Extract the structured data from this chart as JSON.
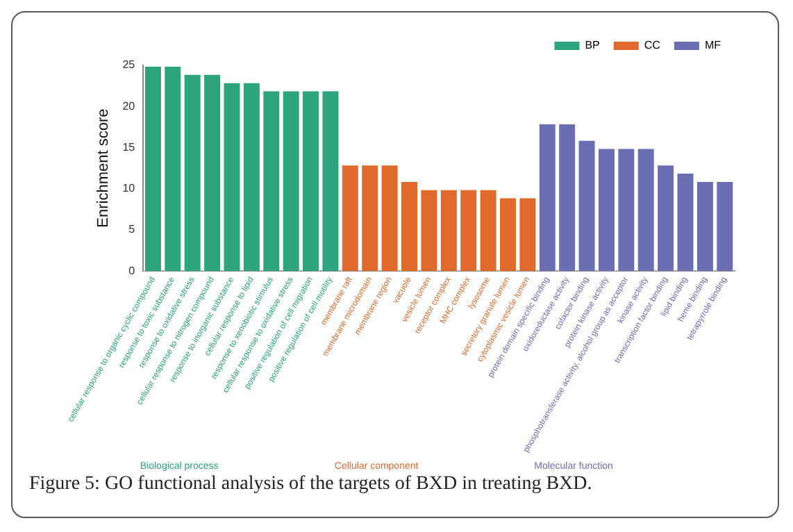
{
  "chart_data": {
    "type": "bar",
    "ylabel": "Enrichment score",
    "categories": [
      "cellular response to organic cyclic compound",
      "response to toxic substance",
      "response to oxidative stress",
      "cellular response to nitrogen compound",
      "response to inorganic substance",
      "cellular response to lipid",
      "response to xenobiotic stimulus",
      "cellular response to oxidative stress",
      "positive regulation of cell migration",
      "positive regulation of cell motility",
      "membrane raft",
      "membrane microdomain",
      "membrane region",
      "vacuole",
      "vesicle lumen",
      "receptor complex",
      "MHC complex",
      "lysosome",
      "secretory granule lumen",
      "cytoplasmic vesicle lumen",
      "protein domain specific binding",
      "oxidoreductase activity",
      "cofactor binding",
      "protein kinase activity",
      "phosphotransferase activity, alcohol group as acceptor",
      "kinase activity",
      "transcription factor binding",
      "lipid binding",
      "heme binding",
      "tetrapyrrole binding"
    ],
    "series": [
      {
        "name": "BP",
        "color": "#2ca57a",
        "values": [
          25,
          25,
          24,
          24,
          23,
          23,
          22,
          22,
          22,
          22,
          null,
          null,
          null,
          null,
          null,
          null,
          null,
          null,
          null,
          null,
          null,
          null,
          null,
          null,
          null,
          null,
          null,
          null,
          null,
          null
        ]
      },
      {
        "name": "CC",
        "color": "#e06a2c",
        "values": [
          null,
          null,
          null,
          null,
          null,
          null,
          null,
          null,
          null,
          null,
          13,
          13,
          13,
          11,
          10,
          10,
          10,
          10,
          9,
          9,
          null,
          null,
          null,
          null,
          null,
          null,
          null,
          null,
          null,
          null
        ]
      },
      {
        "name": "MF",
        "color": "#6a6fb3",
        "values": [
          null,
          null,
          null,
          null,
          null,
          null,
          null,
          null,
          null,
          null,
          null,
          null,
          null,
          null,
          null,
          null,
          null,
          null,
          null,
          null,
          18,
          18,
          16,
          15,
          15,
          15,
          13,
          12,
          11,
          11
        ]
      }
    ],
    "ylim": [
      0,
      25
    ],
    "yticks": [
      0,
      5,
      10,
      15,
      20,
      25
    ],
    "grid": false,
    "legend": "top right",
    "annotations": [
      "Biological process",
      "Cellular component",
      "Molecular function",
      "Figure 5: GO functional analysis of the targets of BXD in treating BXD."
    ]
  }
}
